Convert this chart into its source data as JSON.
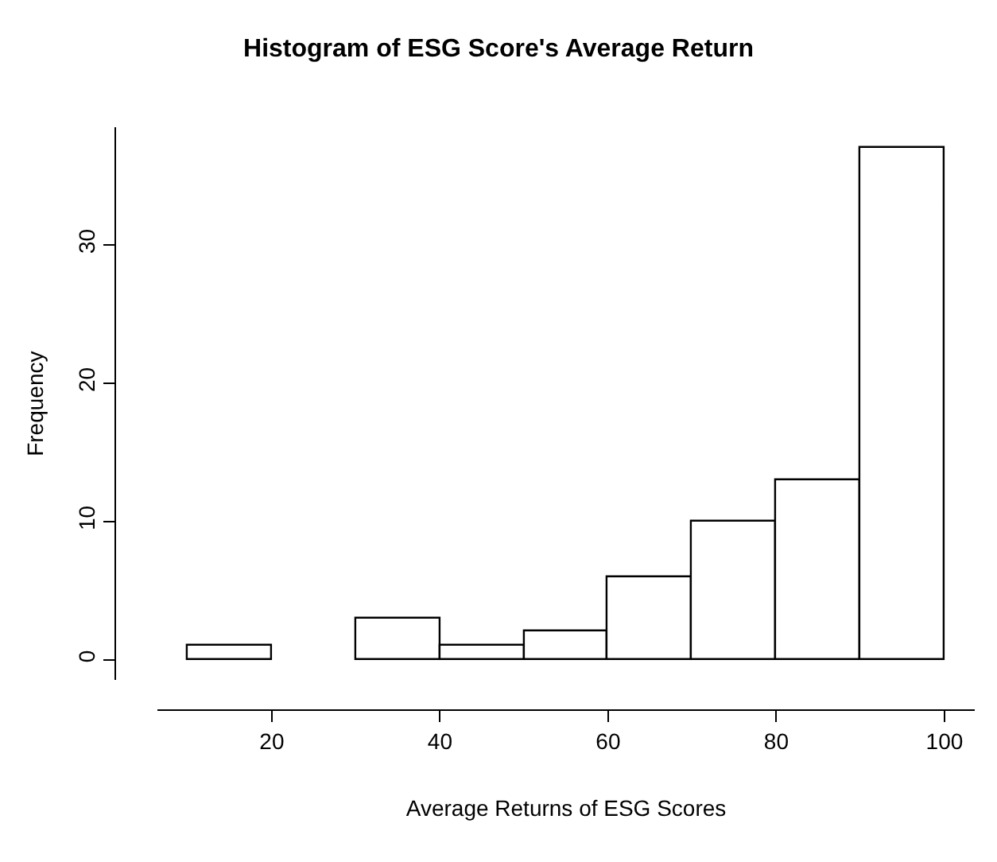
{
  "chart_data": {
    "type": "histogram",
    "title": "Histogram of ESG Score's Average Return",
    "xlabel": "Average Returns of ESG Scores",
    "ylabel": "Frequency",
    "bins": [
      10,
      20,
      30,
      40,
      50,
      60,
      70,
      80,
      90,
      100
    ],
    "values": [
      1,
      0,
      3,
      1,
      2,
      6,
      10,
      13,
      37
    ],
    "color": "#ffffff",
    "xlim": [
      6.4,
      103.6
    ],
    "xticks": [
      20,
      40,
      60,
      80,
      100
    ],
    "ylim": [
      -1.48,
      38.48
    ],
    "yticks": [
      0,
      10,
      20,
      30
    ],
    "grid": false,
    "legend": false
  }
}
